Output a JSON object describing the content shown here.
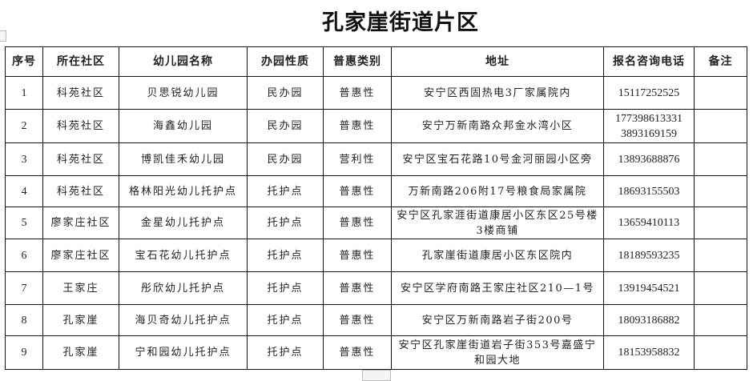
{
  "title": "孔家崖街道片区",
  "headers": [
    "序号",
    "所在社区",
    "幼儿园名称",
    "办园性质",
    "普惠类别",
    "地址",
    "报名咨询电话",
    "备注"
  ],
  "rows": [
    {
      "no": "1",
      "community": "科苑社区",
      "name": "贝思锐幼儿园",
      "nature": "民办园",
      "category": "普惠性",
      "address": "安宁区西固热电3厂家属院内",
      "phone": "15117252525",
      "note": ""
    },
    {
      "no": "2",
      "community": "科苑社区",
      "name": "海鑫幼儿园",
      "nature": "民办园",
      "category": "普惠性",
      "address": "安宁万新南路众邦金水湾小区",
      "phone": "177398613331 3893169159",
      "note": ""
    },
    {
      "no": "3",
      "community": "科苑社区",
      "name": "博凯佳禾幼儿园",
      "nature": "民办园",
      "category": "营利性",
      "address": "安宁区宝石花路10号金河丽园小区旁",
      "phone": "13893688876",
      "note": ""
    },
    {
      "no": "4",
      "community": "科苑社区",
      "name": "格林阳光幼儿托护点",
      "nature": "托护点",
      "category": "普惠性",
      "address": "万新南路206附17号粮食局家属院",
      "phone": "18693155503",
      "note": ""
    },
    {
      "no": "5",
      "community": "廖家庄社区",
      "name": "金星幼儿托护点",
      "nature": "托护点",
      "category": "普惠性",
      "address": "安宁区孔家涯街道康居小区东区25号楼3楼商铺",
      "phone": "13659410113",
      "note": ""
    },
    {
      "no": "6",
      "community": "廖家庄社区",
      "name": "宝石花幼儿托护点",
      "nature": "托护点",
      "category": "普惠性",
      "address": "孔家崖街道康居小区东区院内",
      "phone": "18189593235",
      "note": ""
    },
    {
      "no": "7",
      "community": "王家庄",
      "name": "彤欣幼儿托护点",
      "nature": "托护点",
      "category": "普惠性",
      "address": "安宁区学府南路王家庄社区210—1号",
      "phone": "13919454521",
      "note": ""
    },
    {
      "no": "8",
      "community": "孔家崖",
      "name": "海贝奇幼儿托护点",
      "nature": "托护点",
      "category": "普惠性",
      "address": "安宁区万新南路岩子街200号",
      "phone": "18093186882",
      "note": ""
    },
    {
      "no": "9",
      "community": "孔家崖",
      "name": "宁和园幼儿托护点",
      "nature": "托护点",
      "category": "普惠性",
      "address": "安宁区孔家崖街道岩子街353号嘉盛宁和园大地",
      "phone": "18153958832",
      "note": ""
    }
  ]
}
